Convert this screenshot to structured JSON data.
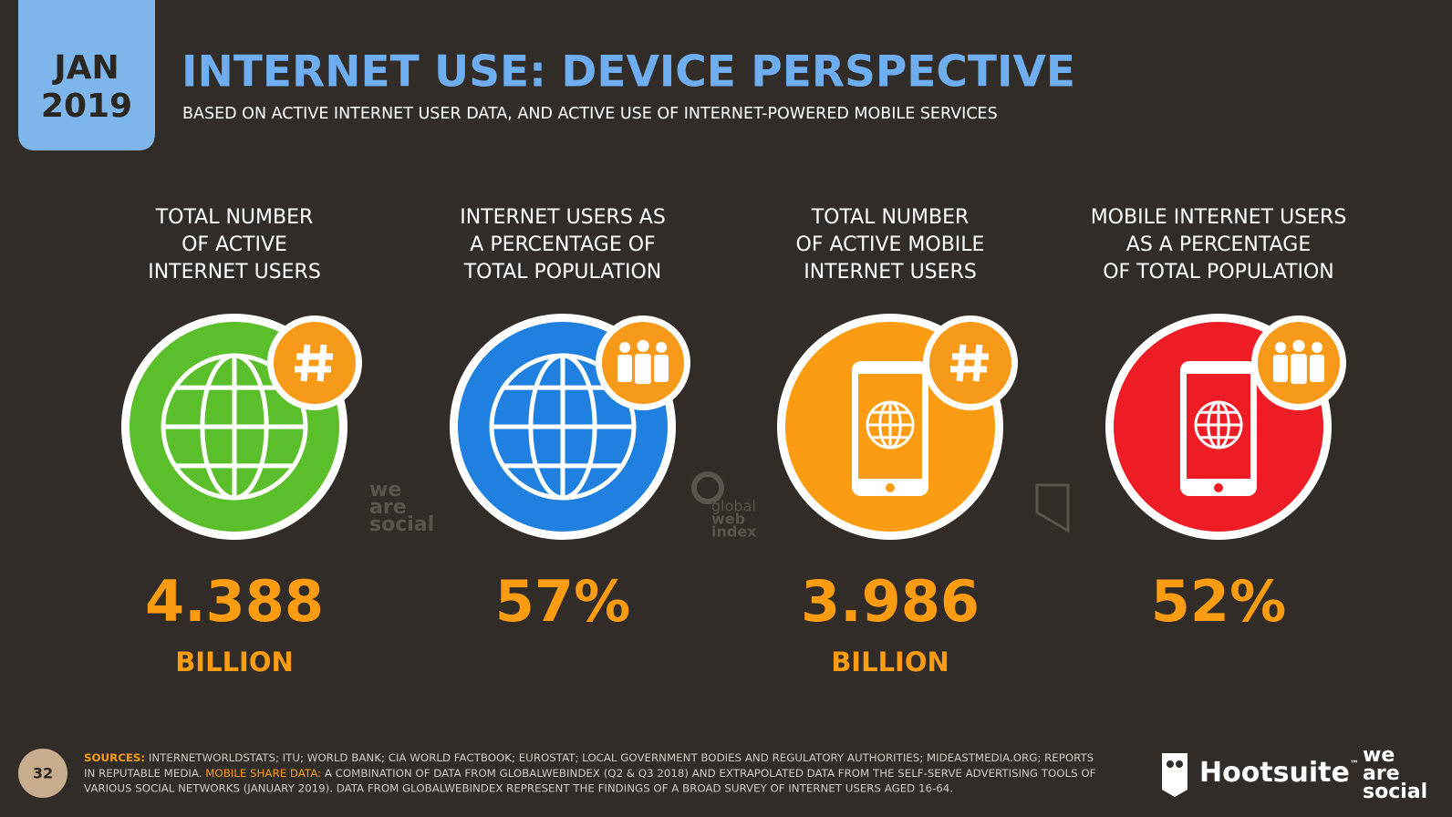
{
  "header": {
    "date_month": "JAN",
    "date_year": "2019",
    "title": "INTERNET USE: DEVICE PERSPECTIVE",
    "subtitle": "BASED ON ACTIVE INTERNET USER DATA, AND ACTIVE USE OF INTERNET-POWERED MOBILE SERVICES"
  },
  "stats": [
    {
      "label_lines": [
        "TOTAL NUMBER",
        "OF ACTIVE",
        "INTERNET USERS"
      ],
      "value": "4.388",
      "unit": "BILLION",
      "color": "#5bbf2b",
      "icon": "globe",
      "badge": "hash"
    },
    {
      "label_lines": [
        "INTERNET USERS AS",
        "A PERCENTAGE OF",
        "TOTAL POPULATION"
      ],
      "value": "57%",
      "color": "#1f80df",
      "icon": "globe",
      "badge": "people"
    },
    {
      "label_lines": [
        "TOTAL NUMBER",
        "OF ACTIVE MOBILE",
        "INTERNET USERS"
      ],
      "value": "3.986",
      "unit": "BILLION",
      "color": "#fb9c12",
      "icon": "phone",
      "badge": "hash"
    },
    {
      "label_lines": [
        "MOBILE INTERNET USERS",
        "AS A PERCENTAGE",
        "OF TOTAL POPULATION"
      ],
      "value": "52%",
      "color": "#ee1d25",
      "icon": "phone",
      "badge": "people"
    }
  ],
  "watermarks": {
    "we_are_social": [
      "we",
      "are",
      "social"
    ],
    "global_web_index": [
      "global",
      "web",
      "index"
    ]
  },
  "footer": {
    "page_number": "32",
    "line1_label": "SOURCES:",
    "line1_text": "INTERNETWORLDSTATS; ITU; WORLD BANK; CIA WORLD FACTBOOK; EUROSTAT; LOCAL GOVERNMENT BODIES AND REGULATORY AUTHORITIES; MIDEASTMEDIA.ORG; REPORTS",
    "line2_start": "IN REPUTABLE MEDIA.",
    "line2_label": "MOBILE SHARE DATA:",
    "line2_text": "A COMBINATION OF DATA FROM GLOBALWEBINDEX (Q2 & Q3 2018) AND EXTRAPOLATED DATA FROM THE SELF-SERVE ADVERTISING TOOLS OF",
    "line3_text": "VARIOUS SOCIAL NETWORKS (JANUARY 2019). DATA FROM GLOBALWEBINDEX REPRESENT THE FINDINGS OF A BROAD SURVEY OF INTERNET USERS AGED 16-64.",
    "brand_hootsuite": "Hootsuite",
    "brand_tm": "™",
    "brand_was": [
      "we",
      "are",
      "social"
    ]
  }
}
